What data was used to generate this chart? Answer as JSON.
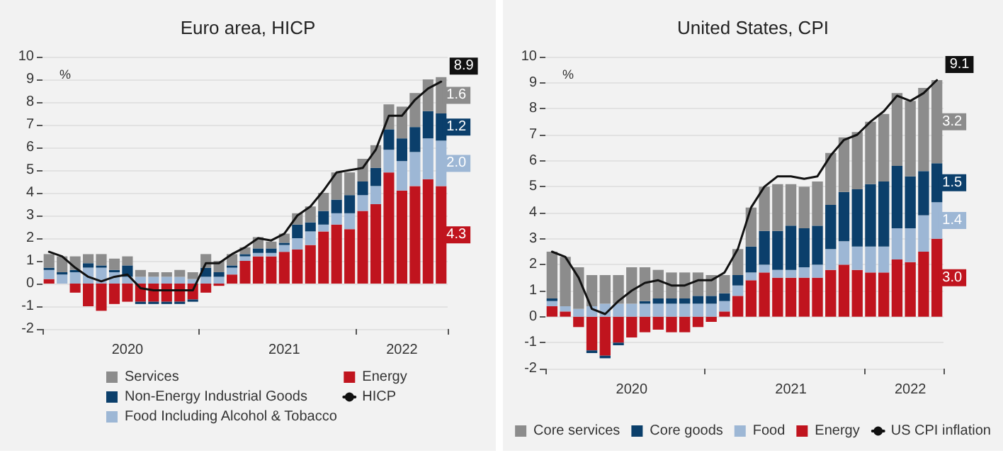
{
  "chart_data": [
    {
      "type": "bar",
      "title": "Euro area, HICP",
      "ylabel": "%",
      "stacked": true,
      "grid": "y",
      "legend": "bottom",
      "categories": [
        null,
        null,
        null,
        null,
        null,
        null,
        "2020",
        null,
        null,
        null,
        null,
        null,
        null,
        null,
        null,
        null,
        null,
        null,
        "2021",
        null,
        null,
        null,
        null,
        null,
        null,
        null,
        null,
        "2022",
        null,
        null,
        null
      ],
      "ylim": [
        -2,
        10
      ],
      "yticks": [
        -2,
        -1,
        0,
        1,
        2,
        3,
        4,
        5,
        6,
        7,
        8,
        9,
        10
      ],
      "series": [
        {
          "name": "Energy",
          "type": "bar",
          "color": "#c0141e",
          "values": [
            0.2,
            0.0,
            -0.4,
            -1.0,
            -1.2,
            -0.9,
            -0.8,
            -0.8,
            -0.8,
            -0.8,
            -0.8,
            -0.7,
            -0.4,
            -0.1,
            0.4,
            1.0,
            1.2,
            1.2,
            1.4,
            1.5,
            1.7,
            2.3,
            2.6,
            2.4,
            3.2,
            3.5,
            4.9,
            4.1,
            4.3,
            4.6,
            4.3
          ],
          "value_labels": [
            null,
            null,
            null,
            null,
            null,
            null,
            null,
            null,
            null,
            null,
            null,
            null,
            null,
            null,
            null,
            null,
            null,
            null,
            null,
            null,
            null,
            null,
            null,
            null,
            null,
            null,
            null,
            null,
            null,
            null,
            "4.3"
          ]
        },
        {
          "name": "Food Including Alcohol & Tobacco",
          "type": "bar",
          "color": "#9db7d5",
          "values": [
            0.4,
            0.4,
            0.5,
            0.7,
            0.7,
            0.5,
            0.3,
            0.3,
            0.3,
            0.3,
            0.3,
            0.2,
            0.3,
            0.3,
            0.3,
            0.2,
            0.15,
            0.15,
            0.3,
            0.5,
            0.6,
            0.3,
            0.5,
            0.7,
            0.7,
            0.8,
            1.0,
            1.3,
            1.5,
            1.8,
            2.0
          ],
          "value_labels": [
            null,
            null,
            null,
            null,
            null,
            null,
            null,
            null,
            null,
            null,
            null,
            null,
            null,
            null,
            null,
            null,
            null,
            null,
            null,
            null,
            null,
            null,
            null,
            null,
            null,
            null,
            null,
            null,
            null,
            null,
            "2.0"
          ]
        },
        {
          "name": "Non-Energy Industrial Goods",
          "type": "bar",
          "color": "#0b3f6b",
          "values": [
            0.1,
            0.1,
            0.1,
            0.2,
            0.1,
            0.1,
            0.5,
            -0.1,
            -0.1,
            -0.1,
            -0.1,
            -0.1,
            0.4,
            0.2,
            0.1,
            0.1,
            0.2,
            0.2,
            0.1,
            0.6,
            0.4,
            0.6,
            0.6,
            0.8,
            0.6,
            0.8,
            0.9,
            1.0,
            1.1,
            1.2,
            1.2
          ],
          "value_labels": [
            null,
            null,
            null,
            null,
            null,
            null,
            null,
            null,
            null,
            null,
            null,
            null,
            null,
            null,
            null,
            null,
            null,
            null,
            null,
            null,
            null,
            null,
            null,
            null,
            null,
            null,
            null,
            null,
            null,
            null,
            "1.2"
          ]
        },
        {
          "name": "Services",
          "type": "bar",
          "color": "#8c8c8c",
          "values": [
            0.6,
            0.7,
            0.6,
            0.4,
            0.5,
            0.5,
            0.4,
            0.3,
            0.2,
            0.2,
            0.3,
            0.3,
            0.6,
            0.5,
            0.5,
            0.3,
            0.5,
            0.3,
            0.4,
            0.5,
            0.7,
            0.8,
            1.2,
            1.0,
            1.0,
            1.0,
            1.1,
            1.4,
            1.5,
            1.4,
            1.6
          ],
          "value_labels": [
            null,
            null,
            null,
            null,
            null,
            null,
            null,
            null,
            null,
            null,
            null,
            null,
            null,
            null,
            null,
            null,
            null,
            null,
            null,
            null,
            null,
            null,
            null,
            null,
            null,
            null,
            null,
            null,
            null,
            null,
            "1.6"
          ]
        },
        {
          "name": "HICP",
          "type": "line",
          "color": "#111111",
          "values": [
            1.4,
            1.2,
            0.7,
            0.3,
            0.1,
            0.3,
            0.4,
            -0.2,
            -0.3,
            -0.3,
            -0.3,
            -0.3,
            0.9,
            0.9,
            1.3,
            1.6,
            2.0,
            1.9,
            2.2,
            3.0,
            3.4,
            4.1,
            4.9,
            5.0,
            5.1,
            5.9,
            7.4,
            7.4,
            8.1,
            8.6,
            8.9
          ],
          "value_labels": [
            null,
            null,
            null,
            null,
            null,
            null,
            null,
            null,
            null,
            null,
            null,
            null,
            null,
            null,
            null,
            null,
            null,
            null,
            null,
            null,
            null,
            null,
            null,
            null,
            null,
            null,
            null,
            null,
            null,
            null,
            "8.9"
          ]
        }
      ]
    },
    {
      "type": "bar",
      "title": "United States, CPI",
      "ylabel": "%",
      "stacked": true,
      "grid": "y",
      "legend": "bottom",
      "categories": [
        null,
        null,
        null,
        null,
        null,
        null,
        "2020",
        null,
        null,
        null,
        null,
        null,
        null,
        null,
        null,
        null,
        null,
        null,
        "2021",
        null,
        null,
        null,
        null,
        null,
        null,
        null,
        null,
        "2022",
        null,
        null
      ],
      "ylim": [
        -2,
        10
      ],
      "yticks": [
        -2,
        -1,
        0,
        1,
        2,
        3,
        4,
        5,
        6,
        7,
        8,
        9,
        10
      ],
      "series": [
        {
          "name": "Energy",
          "type": "bar",
          "color": "#c0141e",
          "values": [
            0.4,
            0.2,
            -0.4,
            -1.3,
            -1.5,
            -1.0,
            -0.8,
            -0.6,
            -0.5,
            -0.6,
            -0.6,
            -0.4,
            -0.2,
            0.2,
            0.8,
            1.4,
            1.7,
            1.5,
            1.5,
            1.5,
            1.5,
            1.8,
            2.0,
            1.8,
            1.7,
            1.7,
            2.2,
            2.1,
            2.5,
            3.0
          ],
          "value_labels": [
            null,
            null,
            null,
            null,
            null,
            null,
            null,
            null,
            null,
            null,
            null,
            null,
            null,
            null,
            null,
            null,
            null,
            null,
            null,
            null,
            null,
            null,
            null,
            null,
            null,
            null,
            null,
            null,
            null,
            "3.0"
          ]
        },
        {
          "name": "Food",
          "type": "bar",
          "color": "#9db7d5",
          "values": [
            0.2,
            0.2,
            0.3,
            0.4,
            0.5,
            0.5,
            0.5,
            0.5,
            0.5,
            0.5,
            0.5,
            0.5,
            0.5,
            0.4,
            0.4,
            0.3,
            0.3,
            0.3,
            0.3,
            0.4,
            0.5,
            0.8,
            0.9,
            0.9,
            1.0,
            1.0,
            1.2,
            1.3,
            1.4,
            1.4
          ],
          "value_labels": [
            null,
            null,
            null,
            null,
            null,
            null,
            null,
            null,
            null,
            null,
            null,
            null,
            null,
            null,
            null,
            null,
            null,
            null,
            null,
            null,
            null,
            null,
            null,
            null,
            null,
            null,
            null,
            null,
            null,
            "1.4"
          ]
        },
        {
          "name": "Core goods",
          "type": "bar",
          "color": "#0b3f6b",
          "values": [
            0.1,
            0.0,
            0.0,
            -0.1,
            -0.1,
            -0.1,
            0.0,
            0.1,
            0.2,
            0.2,
            0.2,
            0.3,
            0.3,
            0.3,
            0.4,
            1.0,
            1.3,
            1.5,
            1.7,
            1.5,
            1.5,
            1.7,
            1.9,
            2.2,
            2.4,
            2.5,
            2.4,
            2.0,
            1.7,
            1.5
          ],
          "value_labels": [
            null,
            null,
            null,
            null,
            null,
            null,
            null,
            null,
            null,
            null,
            null,
            null,
            null,
            null,
            null,
            null,
            null,
            null,
            null,
            null,
            null,
            null,
            null,
            null,
            null,
            null,
            null,
            null,
            null,
            "1.5"
          ]
        },
        {
          "name": "Core services",
          "type": "bar",
          "color": "#8c8c8c",
          "values": [
            1.8,
            1.9,
            1.6,
            1.2,
            1.1,
            1.1,
            1.4,
            1.3,
            1.1,
            1.0,
            1.0,
            0.9,
            0.8,
            0.7,
            1.0,
            1.5,
            1.7,
            1.8,
            1.6,
            1.6,
            1.7,
            2.0,
            2.1,
            2.2,
            2.4,
            2.6,
            2.8,
            2.9,
            3.2,
            3.2
          ],
          "value_labels": [
            null,
            null,
            null,
            null,
            null,
            null,
            null,
            null,
            null,
            null,
            null,
            null,
            null,
            null,
            null,
            null,
            null,
            null,
            null,
            null,
            null,
            null,
            null,
            null,
            null,
            null,
            null,
            null,
            null,
            "3.2"
          ]
        },
        {
          "name": "US CPI inflation",
          "type": "line",
          "color": "#111111",
          "values": [
            2.5,
            2.3,
            1.5,
            0.3,
            0.1,
            0.6,
            1.0,
            1.3,
            1.4,
            1.2,
            1.2,
            1.4,
            1.4,
            1.7,
            2.6,
            4.2,
            5.0,
            5.4,
            5.4,
            5.3,
            5.4,
            6.2,
            6.8,
            7.0,
            7.5,
            7.9,
            8.5,
            8.3,
            8.6,
            9.1
          ],
          "value_labels": [
            null,
            null,
            null,
            null,
            null,
            null,
            null,
            null,
            null,
            null,
            null,
            null,
            null,
            null,
            null,
            null,
            null,
            null,
            null,
            null,
            null,
            null,
            null,
            null,
            null,
            null,
            null,
            null,
            null,
            "9.1"
          ]
        }
      ]
    }
  ]
}
